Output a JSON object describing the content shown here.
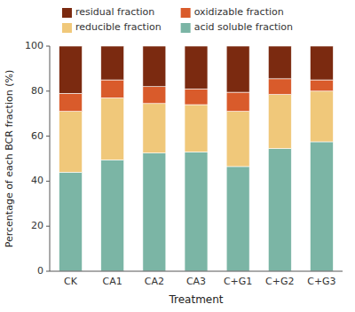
{
  "chart_data": {
    "type": "bar",
    "stacked": true,
    "categories": [
      "CK",
      "CA1",
      "CA2",
      "CA3",
      "C+G1",
      "C+G2",
      "C+G3"
    ],
    "series": [
      {
        "name": "acid soluble fraction",
        "color": "#7BB5A5",
        "values": [
          44,
          49.5,
          52.5,
          53,
          46.5,
          54.5,
          57.5
        ]
      },
      {
        "name": "reducible fraction",
        "color": "#F0C87A",
        "values": [
          27,
          27.5,
          22,
          21,
          24.5,
          24,
          22.5
        ]
      },
      {
        "name": "oxidizable fraction",
        "color": "#D95B2B",
        "values": [
          8,
          8,
          7.5,
          7,
          8.5,
          7,
          5
        ]
      },
      {
        "name": "residual fraction",
        "color": "#7B2A10",
        "values": [
          21,
          15,
          18,
          19,
          20.5,
          14.5,
          15
        ]
      }
    ],
    "xlabel": "Treatment",
    "ylabel": "Percentage of each BCR fraction (%)",
    "ylim": [
      0,
      100
    ],
    "yticks": [
      0,
      20,
      40,
      60,
      80,
      100
    ],
    "grid": false,
    "legend": "top"
  }
}
